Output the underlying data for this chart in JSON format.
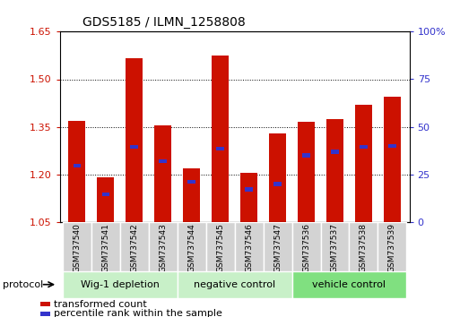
{
  "title": "GDS5185 / ILMN_1258808",
  "samples": [
    "GSM737540",
    "GSM737541",
    "GSM737542",
    "GSM737543",
    "GSM737544",
    "GSM737545",
    "GSM737546",
    "GSM737547",
    "GSM737536",
    "GSM737537",
    "GSM737538",
    "GSM737539"
  ],
  "red_values": [
    1.37,
    1.19,
    1.565,
    1.355,
    1.22,
    1.575,
    1.205,
    1.33,
    1.365,
    1.375,
    1.42,
    1.445
  ],
  "blue_fractions": [
    0.295,
    0.145,
    0.395,
    0.32,
    0.21,
    0.385,
    0.17,
    0.2,
    0.35,
    0.37,
    0.395,
    0.4
  ],
  "ylim_left": [
    1.05,
    1.65
  ],
  "ylim_right": [
    0,
    100
  ],
  "yticks_left": [
    1.05,
    1.2,
    1.35,
    1.5,
    1.65
  ],
  "yticks_right": [
    0,
    25,
    50,
    75,
    100
  ],
  "groups": [
    {
      "label": "Wig-1 depletion",
      "start": 0,
      "end": 3
    },
    {
      "label": "negative control",
      "start": 4,
      "end": 7
    },
    {
      "label": "vehicle control",
      "start": 8,
      "end": 11
    }
  ],
  "bar_color": "#cc1100",
  "blue_color": "#3333cc",
  "base": 1.05,
  "bar_width": 0.6,
  "group_colors": [
    "#c8f0c8",
    "#c8f0c8",
    "#80e080"
  ],
  "sample_box_color": "#d3d3d3",
  "legend_items": [
    {
      "color": "#cc1100",
      "label": "transformed count"
    },
    {
      "color": "#3333cc",
      "label": "percentile rank within the sample"
    }
  ]
}
